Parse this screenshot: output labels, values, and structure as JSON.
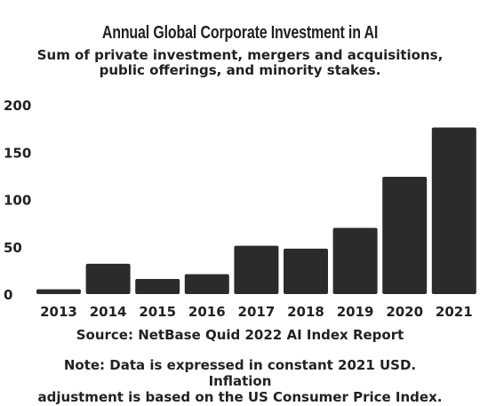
{
  "chart_data": {
    "type": "bar",
    "title": "Annual Global Corporate Investment in AI",
    "subtitle_lines": [
      "Sum of private investment, mergers and acquisitions,",
      "public offerings, and minority stakes."
    ],
    "categories": [
      "2013",
      "2014",
      "2015",
      "2016",
      "2017",
      "2018",
      "2019",
      "2020",
      "2021"
    ],
    "values": [
      5,
      32,
      16,
      21,
      51,
      48,
      70,
      124,
      176
    ],
    "ylim": [
      0,
      200
    ],
    "yticks": [
      "0",
      "50",
      "100",
      "150",
      "200"
    ],
    "ytick_values": [
      0,
      50,
      100,
      150,
      200
    ],
    "grid": false,
    "bar_color": "#2b2b2b",
    "source": "Source: NetBase Quid 2022 AI Index Report",
    "note_lines": [
      "Note: Data is expressed in constant 2021 USD. Inflation",
      "adjustment is based on the US Consumer Price Index."
    ]
  }
}
